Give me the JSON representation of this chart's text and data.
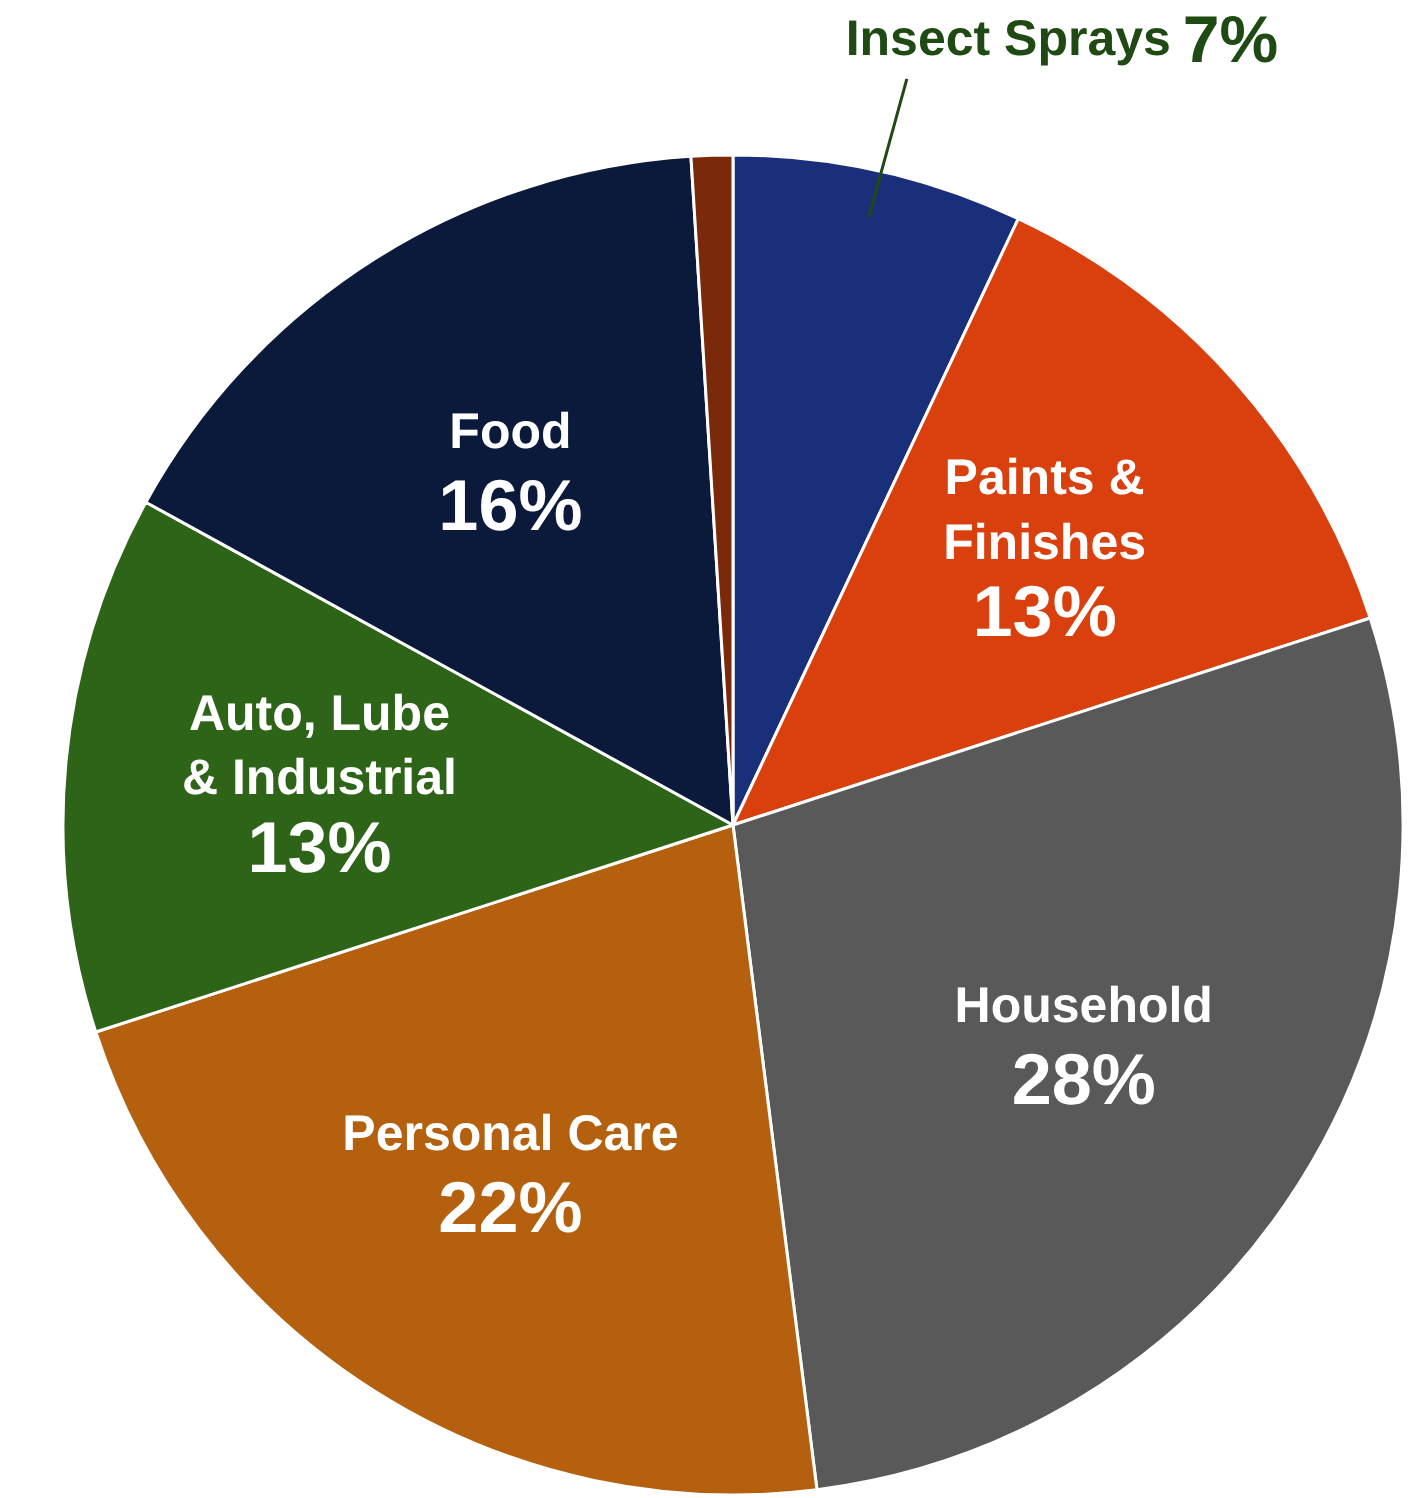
{
  "chart_data": {
    "type": "pie",
    "categories": [
      "Insect Sprays",
      "Paints & Finishes",
      "Household",
      "Personal Care",
      "Auto, Lube & Industrial",
      "Food",
      null
    ],
    "values": [
      7,
      13,
      28,
      22,
      13,
      16,
      1
    ],
    "colors": [
      "#1a2f7a",
      "#d9400e",
      "#595959",
      "#b5600f",
      "#2e6417",
      "#0b1a3a",
      "#7a2a0a"
    ],
    "value_labels": [
      "7%",
      "13%",
      "28%",
      "22%",
      "13%",
      "16%",
      null
    ]
  }
}
